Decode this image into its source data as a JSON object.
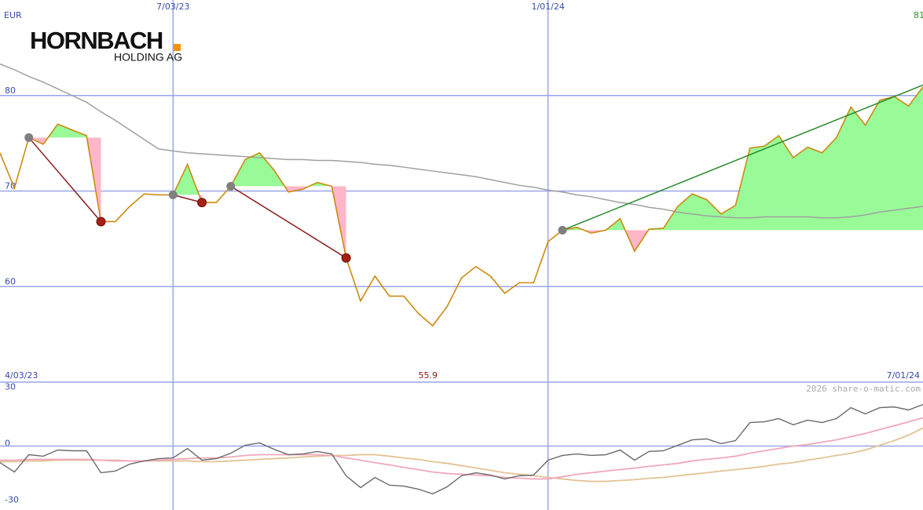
{
  "logo": {
    "name": "HORNBACH",
    "subtitle": "HOLDING AG"
  },
  "chart_data": [
    {
      "type": "line",
      "ylabel": "EUR",
      "categories": [
        "4/03/23",
        null,
        null,
        null,
        null,
        null,
        null,
        null,
        null,
        null,
        null,
        null,
        "7/03/23",
        null,
        null,
        null,
        null,
        null,
        null,
        null,
        null,
        null,
        null,
        null,
        null,
        null,
        null,
        null,
        null,
        null,
        null,
        null,
        null,
        null,
        null,
        null,
        null,
        null,
        "1/01/24",
        null,
        null,
        null,
        null,
        null,
        null,
        null,
        null,
        null,
        null,
        null,
        null,
        null,
        null,
        null,
        null,
        null,
        null,
        null,
        null,
        null,
        null,
        null,
        null,
        null,
        "7/01/24"
      ],
      "series": [
        {
          "name": "HORNBACH HOLDING AG",
          "color": "#cc8a10",
          "values": [
            74.0,
            70.3,
            75.6,
            74.9,
            77.0,
            76.4,
            75.8,
            66.8,
            66.8,
            68.4,
            69.7,
            69.6,
            69.6,
            72.8,
            68.8,
            68.8,
            70.5,
            73.3,
            74.0,
            72.2,
            69.9,
            70.2,
            70.9,
            70.5,
            63.0,
            58.5,
            61.1,
            59.0,
            59.0,
            57.2,
            55.9,
            57.9,
            60.9,
            62.1,
            61.1,
            59.3,
            60.4,
            60.4,
            64.7,
            65.9,
            66.2,
            65.6,
            65.9,
            67.1,
            63.7,
            66.0,
            66.1,
            68.4,
            69.7,
            69.1,
            67.6,
            68.5,
            74.5,
            74.7,
            75.8,
            73.5,
            74.6,
            74.0,
            75.6,
            78.8,
            76.9,
            79.5,
            79.9,
            78.9,
            80.9
          ],
          "value_labels": [
            null,
            null,
            null,
            null,
            null,
            null,
            null,
            null,
            null,
            null,
            null,
            null,
            null,
            null,
            null,
            null,
            null,
            null,
            null,
            null,
            null,
            null,
            null,
            null,
            null,
            null,
            null,
            null,
            null,
            null,
            "55.9",
            null,
            null,
            null,
            null,
            null,
            null,
            null,
            null,
            null,
            null,
            null,
            null,
            null,
            null,
            null,
            null,
            null,
            null,
            null,
            null,
            null,
            null,
            null,
            null,
            null,
            null,
            null,
            null,
            null,
            null,
            null,
            null,
            null,
            "81"
          ]
        },
        {
          "color": "#a0a0a0",
          "values": [
            83.3,
            82.7,
            82.0,
            81.4,
            80.7,
            80.0,
            79.3,
            78.3,
            77.4,
            76.4,
            75.4,
            74.4,
            74.2,
            74.0,
            73.9,
            73.8,
            73.7,
            73.6,
            73.5,
            73.4,
            73.3,
            73.3,
            73.2,
            73.2,
            73.1,
            73.0,
            72.8,
            72.7,
            72.5,
            72.3,
            72.1,
            71.9,
            71.7,
            71.5,
            71.2,
            70.9,
            70.6,
            70.4,
            70.1,
            69.9,
            69.6,
            69.4,
            69.1,
            68.8,
            68.6,
            68.3,
            68.1,
            67.8,
            67.6,
            67.4,
            67.3,
            67.2,
            67.2,
            67.3,
            67.3,
            67.3,
            67.3,
            67.2,
            67.2,
            67.3,
            67.5,
            67.8,
            68.0,
            68.2,
            68.4
          ]
        }
      ],
      "low_label_color": "#8b1a1a",
      "last_label_color": "#2a9a2a",
      "trendlines": [
        {
          "x": [
            2,
            7
          ],
          "y": [
            75.6,
            66.8
          ],
          "color": "#8b1a1a"
        },
        {
          "x": [
            12,
            14
          ],
          "y": [
            69.6,
            68.8
          ],
          "color": "#8b1a1a"
        },
        {
          "x": [
            16,
            24
          ],
          "y": [
            70.5,
            63.0
          ],
          "color": "#8b1a1a"
        },
        {
          "x": [
            39,
            64
          ],
          "y": [
            65.9,
            81.1
          ],
          "color": "#2a8a2a"
        }
      ],
      "area_colors": {
        "above": "#98fb98",
        "below": "#ffb6c8"
      },
      "ylim": [
        50,
        90
      ],
      "yticks": [
        60,
        70,
        80
      ],
      "grid": true
    },
    {
      "type": "line",
      "credit": "2026 share-o-matic.com",
      "series": [
        {
          "color": "#6a6a6a",
          "values": [
            -8.8,
            -13.8,
            -4.6,
            -5.4,
            -2.1,
            -2.5,
            -2.5,
            -14.2,
            -13.3,
            -9.6,
            -7.9,
            -6.7,
            -6.3,
            -1.3,
            -7.5,
            -6.7,
            -3.8,
            0.4,
            1.7,
            -1.7,
            -4.6,
            -4.2,
            -2.9,
            -4.2,
            -15.8,
            -22.1,
            -16.7,
            -20.8,
            -21.3,
            -22.9,
            -25.4,
            -21.7,
            -15.8,
            -14.2,
            -15.4,
            -17.5,
            -15.8,
            -15.4,
            -7.5,
            -5.0,
            -4.2,
            -5.0,
            -4.6,
            -2.1,
            -7.5,
            -2.9,
            -2.5,
            0.4,
            3.3,
            3.8,
            1.3,
            2.9,
            12.5,
            12.9,
            14.6,
            11.3,
            13.8,
            12.5,
            14.6,
            20.4,
            17.1,
            20.4,
            20.8,
            19.2,
            22.1
          ]
        },
        {
          "color": "#f0a8bc",
          "values": [
            -7.5,
            -7.5,
            -7.1,
            -7.1,
            -7.1,
            -7.1,
            -7.1,
            -7.5,
            -7.9,
            -7.9,
            -7.9,
            -7.5,
            -7.1,
            -6.7,
            -6.3,
            -6.3,
            -5.8,
            -5.0,
            -4.6,
            -4.6,
            -4.6,
            -4.6,
            -4.6,
            -5.0,
            -6.3,
            -7.5,
            -8.8,
            -10.0,
            -11.3,
            -12.5,
            -13.8,
            -14.6,
            -15.0,
            -15.4,
            -15.8,
            -16.7,
            -17.1,
            -17.5,
            -17.5,
            -16.3,
            -15.0,
            -14.2,
            -13.3,
            -12.5,
            -11.7,
            -10.8,
            -10.0,
            -9.2,
            -7.9,
            -7.1,
            -6.3,
            -5.4,
            -3.8,
            -2.5,
            -1.3,
            0.0,
            0.8,
            2.1,
            3.3,
            5.0,
            6.7,
            8.8,
            10.8,
            12.9,
            15.0
          ]
        },
        {
          "color": "#e2c294",
          "values": [
            -8.3,
            -8.3,
            -7.9,
            -7.9,
            -7.5,
            -7.5,
            -7.5,
            -7.5,
            -7.5,
            -7.9,
            -7.9,
            -7.9,
            -7.9,
            -7.9,
            -8.3,
            -8.3,
            -7.9,
            -7.5,
            -7.1,
            -6.7,
            -6.3,
            -5.8,
            -5.4,
            -5.0,
            -5.0,
            -4.6,
            -4.6,
            -5.4,
            -6.3,
            -7.1,
            -8.3,
            -9.2,
            -10.4,
            -11.7,
            -12.9,
            -14.2,
            -15.0,
            -15.8,
            -16.7,
            -17.5,
            -18.3,
            -18.8,
            -18.8,
            -18.3,
            -17.9,
            -17.1,
            -16.7,
            -15.8,
            -15.0,
            -14.2,
            -13.3,
            -12.5,
            -11.7,
            -10.8,
            -9.6,
            -8.8,
            -7.5,
            -6.3,
            -5.0,
            -3.8,
            -2.1,
            0.4,
            2.9,
            5.8,
            9.6
          ]
        }
      ],
      "ylim": [
        -34,
        34
      ],
      "yticks": [
        30,
        0,
        -30
      ],
      "zero_line": true
    }
  ]
}
